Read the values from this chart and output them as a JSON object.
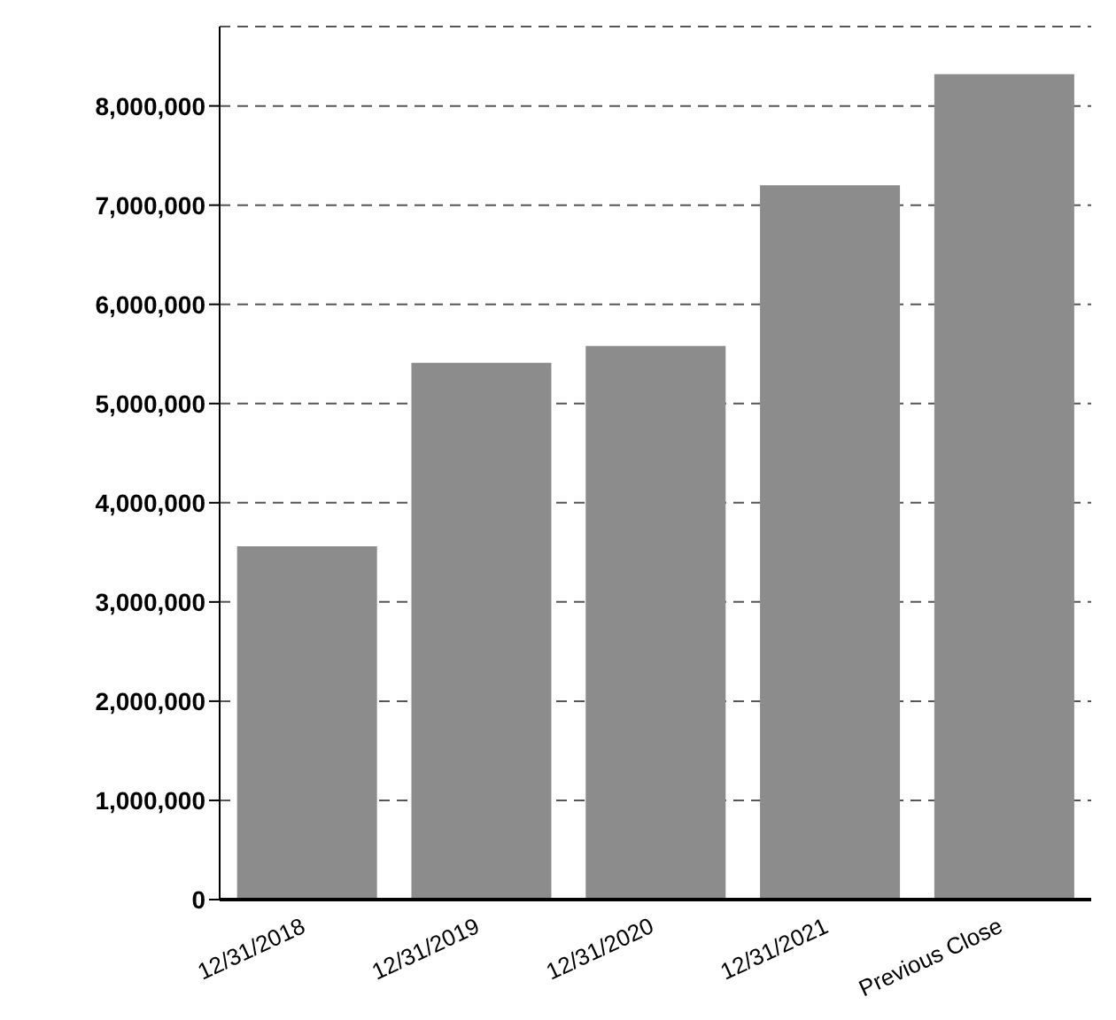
{
  "chart_data": {
    "type": "bar",
    "categories": [
      "12/31/2018",
      "12/31/2019",
      "12/31/2020",
      "12/31/2021",
      "Previous Close"
    ],
    "values": [
      3560000,
      5410000,
      5580000,
      7200000,
      8320000
    ],
    "color": "#8c8c8c",
    "ylim": [
      0,
      8800000
    ],
    "yticks": [
      {
        "value": 0,
        "label": "0"
      },
      {
        "value": 1000000,
        "label": "1,000,000"
      },
      {
        "value": 2000000,
        "label": "2,000,000"
      },
      {
        "value": 3000000,
        "label": "3,000,000"
      },
      {
        "value": 4000000,
        "label": "4,000,000"
      },
      {
        "value": 5000000,
        "label": "5,000,000"
      },
      {
        "value": 6000000,
        "label": "6,000,000"
      },
      {
        "value": 7000000,
        "label": "7,000,000"
      },
      {
        "value": 8000000,
        "label": "8,000,000"
      }
    ],
    "grid": "y",
    "legend": false
  }
}
